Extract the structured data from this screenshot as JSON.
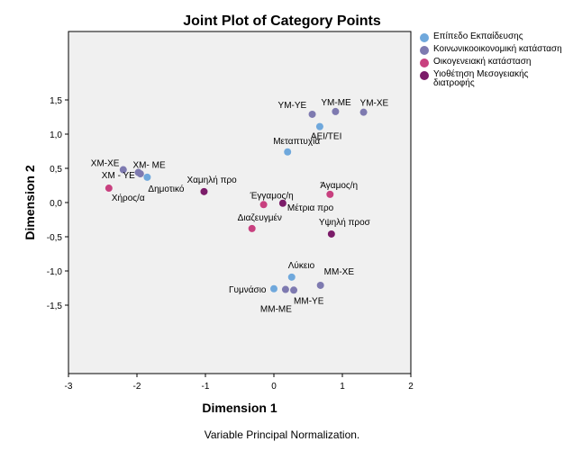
{
  "chart_data": {
    "type": "scatter",
    "title": "Joint Plot of Category Points",
    "xlabel": "Dimension 1",
    "ylabel": "Dimension 2",
    "xlim": [
      -3,
      2
    ],
    "ylim": [
      -2.5,
      2.5
    ],
    "xticks": [
      "-3",
      "-2",
      "-1",
      "0",
      "1",
      "2"
    ],
    "yticks": [
      "1,5",
      "1,0",
      "0,5",
      "0,0",
      "-0,5",
      "-1,0",
      "-1,5"
    ],
    "ytick_values": [
      1.5,
      1.0,
      0.5,
      0.0,
      -0.5,
      -1.0,
      -1.5
    ],
    "grid": false,
    "legend_position": "right",
    "series": [
      {
        "name": "Επίπεδο Εκπαίδευσης",
        "color": "#6fa8dc",
        "points": [
          {
            "label": "Δημοτικό",
            "x": -1.85,
            "y": 0.37
          },
          {
            "label": "Μεταπτυχία",
            "x": 0.2,
            "y": 0.74
          },
          {
            "label": "ΑΕΙ/ΤΕΙ",
            "x": 0.67,
            "y": 1.11
          },
          {
            "label": "Λύκειο",
            "x": 0.26,
            "y": -1.09
          },
          {
            "label": "Γυμνάσιο",
            "x": 0.0,
            "y": -1.26
          }
        ]
      },
      {
        "name": "Κοινωνικοοικονομική κατάσταση",
        "color": "#7e7ab0",
        "points": [
          {
            "label": "ΥΜ-ΥΕ",
            "x": 0.56,
            "y": 1.29
          },
          {
            "label": "ΥΜ-ΜΕ",
            "x": 0.9,
            "y": 1.33
          },
          {
            "label": "ΥΜ-ΧΕ",
            "x": 1.31,
            "y": 1.32
          },
          {
            "label": "ΧΜ-ΧΕ",
            "x": -2.2,
            "y": 0.48
          },
          {
            "label": "ΧΜ- ΜΕ",
            "x": -1.98,
            "y": 0.44
          },
          {
            "label": "ΧΜ - ΥΕ",
            "x": -1.95,
            "y": 0.42
          },
          {
            "label": "ΜΜ-ΧΕ",
            "x": 0.68,
            "y": -1.21
          },
          {
            "label": "ΜΜ-ΜΕ",
            "x": 0.17,
            "y": -1.27
          },
          {
            "label": "ΜΜ-ΥΕ",
            "x": 0.29,
            "y": -1.28
          }
        ]
      },
      {
        "name": "Οικογενειακή κατάσταση",
        "color": "#c8407f",
        "points": [
          {
            "label": "Χήρος/α",
            "x": -2.41,
            "y": 0.21
          },
          {
            "label": "Έγγαμος/η",
            "x": -0.15,
            "y": -0.03
          },
          {
            "label": "Άγαμος/η",
            "x": 0.82,
            "y": 0.12
          },
          {
            "label": "Διαζευγμέν",
            "x": -0.32,
            "y": -0.38
          }
        ]
      },
      {
        "name": "Υιοθέτηση Μεσογειακής διατροφής",
        "color": "#7b1c69",
        "points": [
          {
            "label": "Χαμηλή προ",
            "x": -1.02,
            "y": 0.16
          },
          {
            "label": "Μέτρια προ",
            "x": 0.13,
            "y": -0.01
          },
          {
            "label": "Υψηλή προσ",
            "x": 0.84,
            "y": -0.46
          }
        ]
      }
    ],
    "footnote": "Variable Principal Normalization."
  }
}
